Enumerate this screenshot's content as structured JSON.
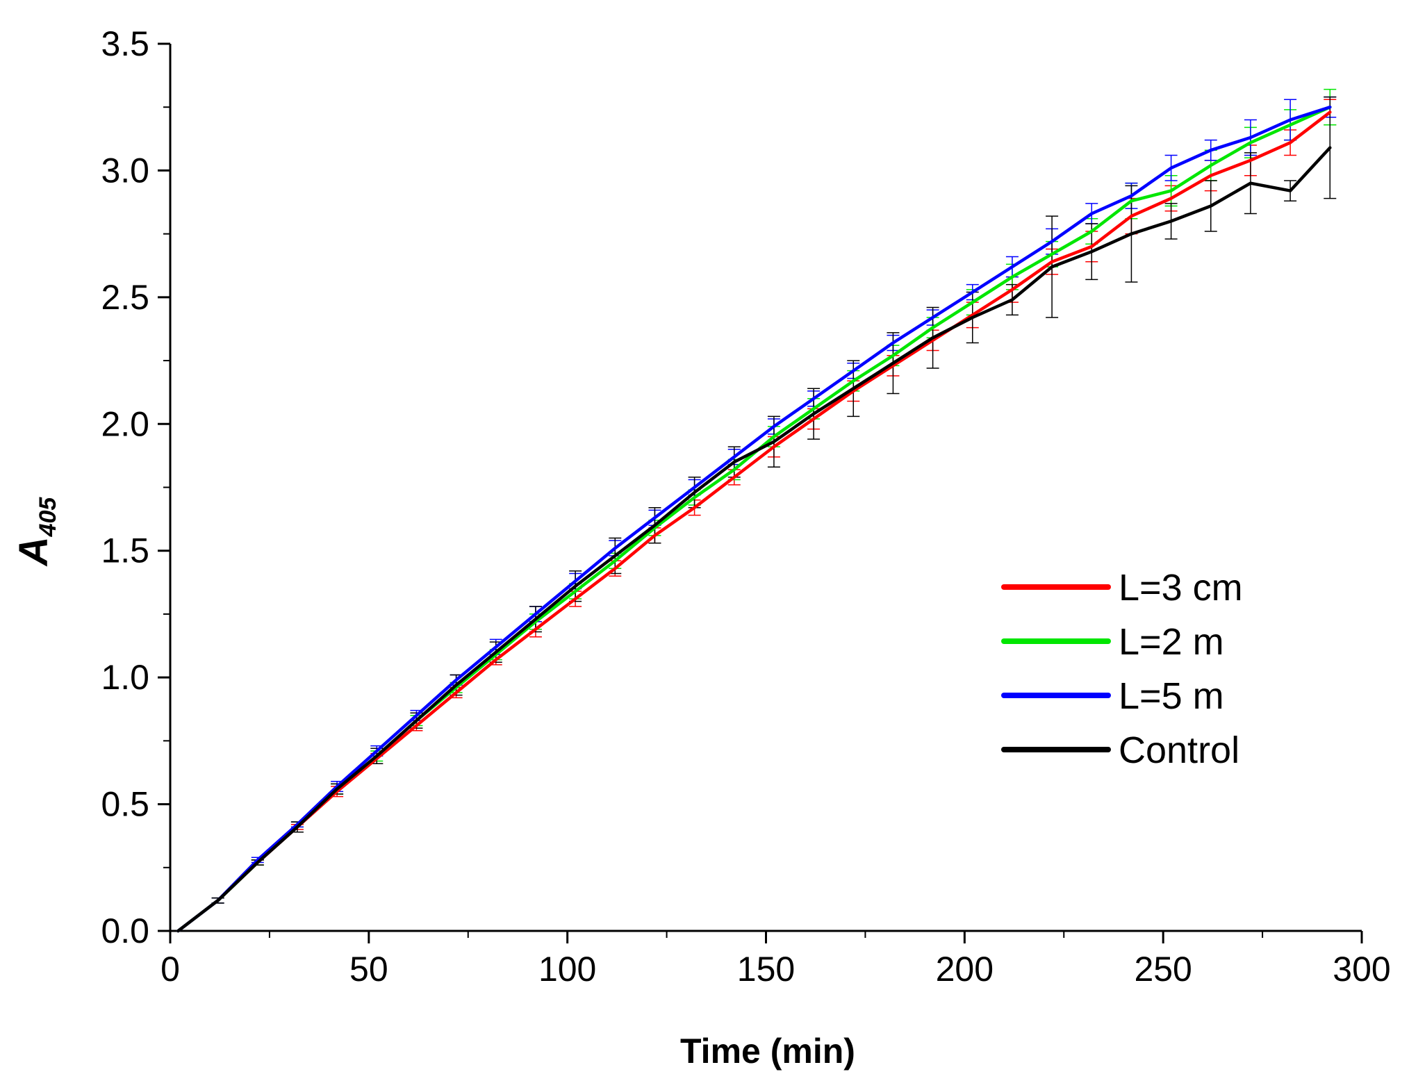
{
  "chart_data": {
    "type": "line",
    "title": "",
    "xlabel": "Time (min)",
    "ylabel_main": "A",
    "ylabel_sub": "405",
    "xlim": [
      0,
      300
    ],
    "ylim": [
      0.0,
      3.5
    ],
    "xticks": [
      0,
      50,
      100,
      150,
      200,
      250,
      300
    ],
    "xtick_labels": [
      "0",
      "50",
      "100",
      "150",
      "200",
      "250",
      "300"
    ],
    "yticks": [
      0.0,
      0.5,
      1.0,
      1.5,
      2.0,
      2.5,
      3.0,
      3.5
    ],
    "ytick_labels": [
      "0.0",
      "0.5",
      "1.0",
      "1.5",
      "2.0",
      "2.5",
      "3.0",
      "3.5"
    ],
    "legend_position": "center-right",
    "x": [
      2,
      12,
      22,
      32,
      42,
      52,
      62,
      72,
      82,
      92,
      102,
      112,
      122,
      132,
      142,
      152,
      162,
      172,
      182,
      192,
      202,
      212,
      222,
      232,
      242,
      252,
      262,
      272,
      282,
      292
    ],
    "series": [
      {
        "name": "L=3 cm",
        "color": "#ff0000",
        "values": [
          0.0,
          0.12,
          0.27,
          0.41,
          0.55,
          0.68,
          0.81,
          0.94,
          1.07,
          1.19,
          1.31,
          1.43,
          1.56,
          1.67,
          1.79,
          1.91,
          2.02,
          2.13,
          2.23,
          2.33,
          2.43,
          2.53,
          2.64,
          2.7,
          2.82,
          2.89,
          2.98,
          3.04,
          3.11,
          3.23
        ],
        "errors": [
          0.0,
          0.01,
          0.01,
          0.01,
          0.02,
          0.02,
          0.02,
          0.02,
          0.02,
          0.03,
          0.03,
          0.03,
          0.03,
          0.03,
          0.03,
          0.04,
          0.04,
          0.04,
          0.04,
          0.04,
          0.05,
          0.05,
          0.05,
          0.06,
          0.07,
          0.05,
          0.06,
          0.06,
          0.05,
          0.05
        ]
      },
      {
        "name": "L=2 m",
        "color": "#00e600",
        "values": [
          0.0,
          0.12,
          0.27,
          0.42,
          0.56,
          0.69,
          0.83,
          0.96,
          1.09,
          1.22,
          1.34,
          1.46,
          1.59,
          1.71,
          1.82,
          1.95,
          2.06,
          2.17,
          2.27,
          2.38,
          2.48,
          2.58,
          2.67,
          2.76,
          2.88,
          2.92,
          3.02,
          3.11,
          3.18,
          3.25
        ],
        "errors": [
          0.0,
          0.01,
          0.01,
          0.01,
          0.02,
          0.02,
          0.02,
          0.02,
          0.02,
          0.03,
          0.03,
          0.03,
          0.03,
          0.03,
          0.04,
          0.04,
          0.04,
          0.04,
          0.04,
          0.04,
          0.05,
          0.05,
          0.05,
          0.05,
          0.07,
          0.06,
          0.06,
          0.06,
          0.06,
          0.07
        ]
      },
      {
        "name": "L=5 m",
        "color": "#0000ff",
        "values": [
          0.0,
          0.12,
          0.28,
          0.42,
          0.57,
          0.71,
          0.85,
          0.99,
          1.12,
          1.25,
          1.38,
          1.51,
          1.63,
          1.75,
          1.87,
          1.99,
          2.1,
          2.21,
          2.32,
          2.42,
          2.52,
          2.62,
          2.72,
          2.83,
          2.9,
          3.01,
          3.08,
          3.13,
          3.2,
          3.25
        ],
        "errors": [
          0.0,
          0.01,
          0.01,
          0.01,
          0.02,
          0.02,
          0.02,
          0.02,
          0.03,
          0.03,
          0.03,
          0.03,
          0.03,
          0.03,
          0.03,
          0.03,
          0.03,
          0.03,
          0.03,
          0.03,
          0.03,
          0.04,
          0.05,
          0.04,
          0.05,
          0.05,
          0.04,
          0.07,
          0.08,
          0.04
        ]
      },
      {
        "name": "Control",
        "color": "#000000",
        "values": [
          0.0,
          0.12,
          0.27,
          0.41,
          0.56,
          0.69,
          0.83,
          0.97,
          1.1,
          1.23,
          1.36,
          1.48,
          1.6,
          1.73,
          1.85,
          1.93,
          2.04,
          2.14,
          2.24,
          2.34,
          2.42,
          2.49,
          2.62,
          2.68,
          2.75,
          2.8,
          2.86,
          2.95,
          2.92,
          3.09
        ],
        "errors": [
          0.0,
          0.01,
          0.01,
          0.02,
          0.02,
          0.03,
          0.03,
          0.04,
          0.04,
          0.05,
          0.06,
          0.07,
          0.07,
          0.06,
          0.06,
          0.1,
          0.1,
          0.11,
          0.12,
          0.12,
          0.1,
          0.06,
          0.2,
          0.11,
          0.19,
          0.07,
          0.1,
          0.12,
          0.04,
          0.2
        ]
      }
    ]
  }
}
